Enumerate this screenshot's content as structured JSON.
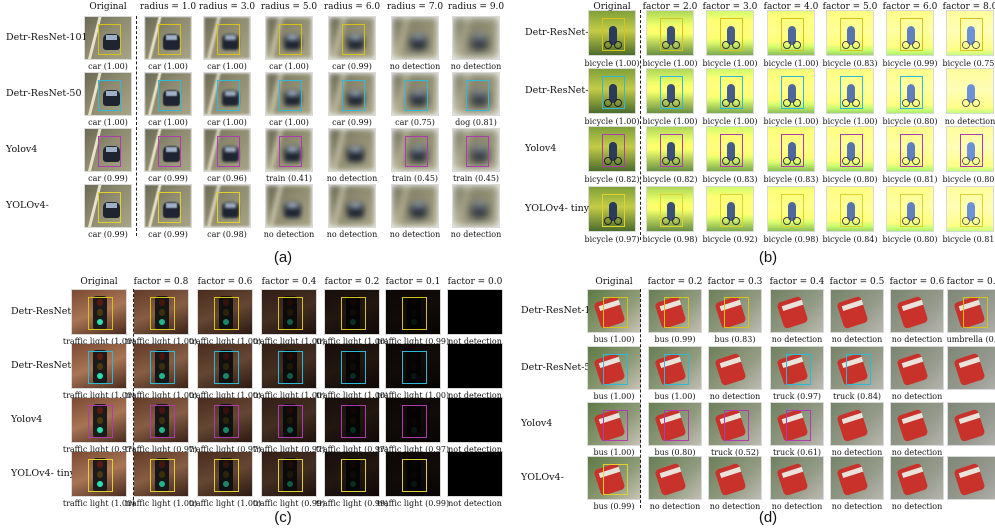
{
  "panels": [
    {
      "id": "a",
      "label": "(a)",
      "headers": [
        "Original",
        "radius = 1.0",
        "radius = 3.0",
        "radius = 5.0",
        "radius = 6.0",
        "radius = 7.0",
        "radius = 9.0"
      ],
      "rows": [
        {
          "label": "Detr-ResNet-101",
          "captions": [
            "car (1.00)",
            "car (1.00)",
            "car (1.00)",
            "car (1.00)",
            "car (0.99)",
            "no detection",
            "no detection"
          ]
        },
        {
          "label": "Detr-ResNet-50",
          "captions": [
            "car (1.00)",
            "car (1.00)",
            "car (1.00)",
            "car (1.00)",
            "car (0.99)",
            "car (0.75)",
            "dog (0.81)"
          ]
        },
        {
          "label": "Yolov4",
          "captions": [
            "car (0.99)",
            "car (0.99)",
            "car (0.96)",
            "train (0.41)",
            "no detection",
            "train (0.45)",
            "train (0.45)"
          ]
        },
        {
          "label": "YOLOv4-",
          "captions": [
            "car (0.99)",
            "car (0.99)",
            "car (0.98)",
            "no detection",
            "no detection",
            "no detection",
            "no detection"
          ]
        }
      ]
    },
    {
      "id": "b",
      "label": "(b)",
      "headers": [
        "Original",
        "factor = 2.0",
        "factor = 3.0",
        "factor = 4.0",
        "factor = 5.0",
        "factor = 6.0",
        "factor = 8.0"
      ],
      "rows": [
        {
          "label": "Detr-ResNet-101",
          "captions": [
            "bicycle (1.00)",
            "bicycle (1.00)",
            "bicycle (1.00)",
            "bicycle (1.00)",
            "bicycle (0.83)",
            "bicycle (0.99)",
            "bicycle (0.75)"
          ]
        },
        {
          "label": "Detr-ResNet-50",
          "captions": [
            "bicycle (1.00)",
            "bicycle (1.00)",
            "bicycle (1.00)",
            "bicycle (1.00)",
            "bicycle (1.00)",
            "bicycle (0.80)",
            "no detection"
          ]
        },
        {
          "label": "Yolov4",
          "captions": [
            "bicycle (0.82)",
            "bicycle (0.82)",
            "bicycle (0.83)",
            "bicycle (0.83)",
            "bicycle (0.80)",
            "bicycle (0.81)",
            "bicycle (0.80)"
          ]
        },
        {
          "label": "YOLOv4- tiny",
          "captions": [
            "bicycle (0.97)",
            "bicycle (0.98)",
            "bicycle (0.92)",
            "bicycle (0.98)",
            "bicycle (0.84)",
            "bicycle (0.80)",
            "bicycle (0.81)"
          ]
        }
      ]
    },
    {
      "id": "c",
      "label": "(c)",
      "headers": [
        "Original",
        "factor = 0.8",
        "factor = 0.6",
        "factor = 0.4",
        "factor = 0.2",
        "factor = 0.1",
        "factor = 0.0"
      ],
      "rows": [
        {
          "label": "Detr-ResNet-101",
          "captions": [
            "traffic light (1.00)",
            "traffic light (1.00)",
            "traffic light (1.00)",
            "traffic light (1.00)",
            "traffic light (1.00)",
            "traffic light (0.99)",
            "not detection"
          ]
        },
        {
          "label": "Detr-ResNet-50",
          "captions": [
            "traffic light (1.00)",
            "traffic light (1.00)",
            "traffic light (1.00)",
            "traffic light (1.00)",
            "traffic light (1.00)",
            "traffic light (1.00)",
            "not detection"
          ]
        },
        {
          "label": "Yolov4",
          "captions": [
            "traffic light (0.97)",
            "traffic light (0.97)",
            "traffic light (0.97)",
            "traffic light (0.97)",
            "traffic light (0.97)",
            "traffic light (0.97)",
            "not detection"
          ]
        },
        {
          "label": "YOLOv4- tiny",
          "captions": [
            "traffic light (1.00)",
            "traffic light (1.00)",
            "traffic light (1.00)",
            "traffic light (0.99)",
            "traffic light (0.99)",
            "traffic light (0.99)",
            "not detection"
          ]
        }
      ]
    },
    {
      "id": "d",
      "label": "(d)",
      "headers": [
        "Original",
        "factor = 0.2",
        "factor = 0.3",
        "factor = 0.4",
        "factor = 0.5",
        "factor = 0.6",
        "factor = 0.7"
      ],
      "rows": [
        {
          "label": "Detr-ResNet-101",
          "captions": [
            "bus (1.00)",
            "bus (0.99)",
            "bus (0.83)",
            "no detection",
            "no detection",
            "no detection",
            "umbrella (0.8"
          ]
        },
        {
          "label": "Detr-ResNet-50",
          "captions": [
            "bus (1.00)",
            "bus (1.00)",
            "no detection",
            "truck (0.97)",
            "truck (0.84)",
            "no detection",
            ""
          ]
        },
        {
          "label": "Yolov4",
          "captions": [
            "bus (1.00)",
            "bus (0.80)",
            "truck (0.52)",
            "truck (0.61)",
            "no detection",
            "no detection",
            ""
          ]
        },
        {
          "label": "YOLOv4-",
          "captions": [
            "bus (0.99)",
            "no detection",
            "no detection",
            "no detection",
            "no detection",
            "no detection",
            ""
          ]
        }
      ]
    }
  ]
}
